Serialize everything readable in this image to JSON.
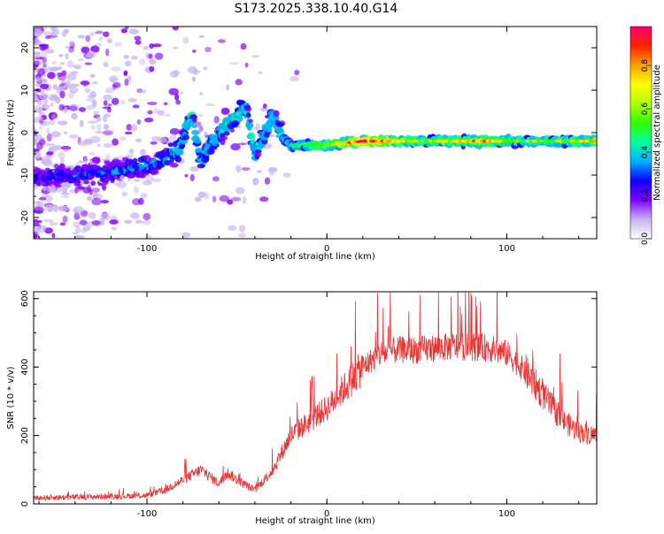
{
  "title": "S173.2025.338.10.40.G14",
  "chart_data": [
    {
      "type": "heatmap",
      "xlabel": "Height of straight line (km)",
      "ylabel": "Frequency (Hz)",
      "xlim": [
        -163,
        150
      ],
      "ylim": [
        -25,
        25
      ],
      "xticks": [
        -100,
        0,
        100
      ],
      "yticks": [
        -20,
        -10,
        0,
        10,
        20
      ],
      "colorbar": {
        "label": "Normalized spectral amplitude",
        "range": [
          0,
          0.98
        ],
        "ticks": [
          "0.0",
          "0.2",
          "0.4",
          "0.6",
          "0.8"
        ],
        "tick_values": [
          0,
          0.2,
          0.4,
          0.6,
          0.8
        ],
        "colormap": [
          "#ffffff",
          "#c8b4f0",
          "#8000ff",
          "#1000ff",
          "#00b0ff",
          "#00ffa0",
          "#30ff00",
          "#b0ff00",
          "#ffff00",
          "#ffa000",
          "#ff2000",
          "#ff0070"
        ]
      },
      "ridge": {
        "x": [
          -163,
          -140,
          -120,
          -100,
          -90,
          -82,
          -78,
          -75,
          -70,
          -65,
          -55,
          -45,
          -40,
          -35,
          -30,
          -25,
          -20,
          -10,
          0,
          10,
          20,
          30,
          50,
          70,
          85,
          100,
          120,
          150
        ],
        "y": [
          -11,
          -10,
          -9,
          -8,
          -6,
          -4,
          1,
          4,
          -7,
          -3,
          2,
          6,
          -5,
          -1,
          4,
          -1,
          -3,
          -3,
          -3,
          -2.5,
          -2,
          -2,
          -2,
          -2,
          -2,
          -2,
          -2,
          -2
        ],
        "intensity": [
          0.25,
          0.28,
          0.3,
          0.32,
          0.35,
          0.4,
          0.38,
          0.4,
          0.35,
          0.38,
          0.42,
          0.45,
          0.38,
          0.4,
          0.45,
          0.4,
          0.45,
          0.55,
          0.6,
          0.7,
          0.85,
          0.8,
          0.55,
          0.6,
          0.75,
          0.55,
          0.5,
          0.65
        ]
      }
    },
    {
      "type": "line",
      "xlabel": "Height of straight line (km)",
      "ylabel": "SNR (10 * v/v)",
      "xlim": [
        -163,
        150
      ],
      "ylim": [
        0,
        620
      ],
      "xticks": [
        -100,
        0,
        100
      ],
      "yticks": [
        0,
        200,
        400,
        600
      ],
      "color": "#ee3333",
      "series": [
        {
          "name": "SNR",
          "x": [
            -163,
            -140,
            -120,
            -100,
            -90,
            -80,
            -70,
            -60,
            -55,
            -50,
            -40,
            -30,
            -20,
            -10,
            0,
            10,
            20,
            30,
            40,
            50,
            60,
            70,
            80,
            90,
            100,
            110,
            120,
            130,
            140,
            150
          ],
          "values": [
            18,
            20,
            22,
            25,
            40,
            70,
            100,
            60,
            90,
            70,
            40,
            100,
            200,
            240,
            280,
            340,
            400,
            440,
            450,
            450,
            455,
            460,
            460,
            455,
            440,
            390,
            320,
            250,
            210,
            200
          ]
        }
      ]
    }
  ]
}
